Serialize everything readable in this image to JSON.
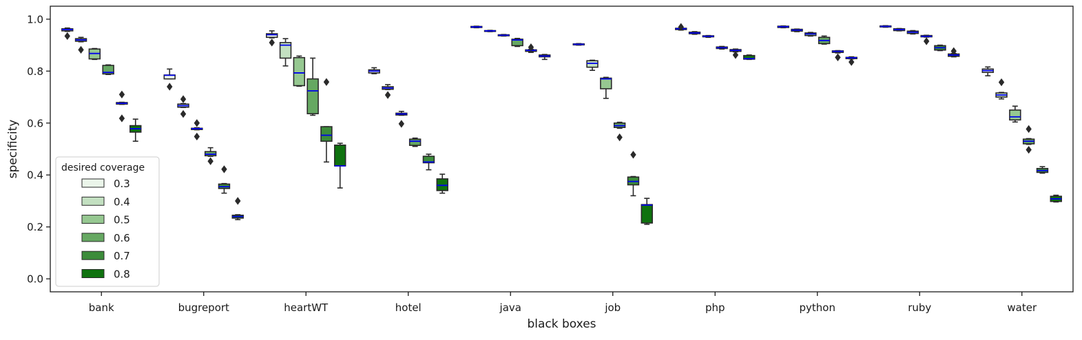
{
  "chart_data": {
    "type": "box",
    "xlabel": "black boxes",
    "ylabel": "specificity",
    "ylim": [
      -0.05,
      1.05
    ],
    "yticks": [
      0.0,
      0.2,
      0.4,
      0.6,
      0.8,
      1.0
    ],
    "ytick_labels": [
      "0.0",
      "0.2",
      "0.4",
      "0.6",
      "0.8",
      "1.0"
    ],
    "grid": false,
    "categories": [
      "bank",
      "bugreport",
      "heartWT",
      "hotel",
      "java",
      "job",
      "php",
      "python",
      "ruby",
      "water"
    ],
    "legend": {
      "title": "desired coverage",
      "placement": "lower-left",
      "entries": [
        {
          "label": "0.3",
          "color": "#ebf5ea"
        },
        {
          "label": "0.4",
          "color": "#c3e0c1"
        },
        {
          "label": "0.5",
          "color": "#96c891"
        },
        {
          "label": "0.6",
          "color": "#66a862"
        },
        {
          "label": "0.7",
          "color": "#3c8c3a"
        },
        {
          "label": "0.8",
          "color": "#0f720f"
        }
      ]
    },
    "colors": {
      "median": "#0000ee",
      "box_edge": "#2a2a2a",
      "flier": "#2a2a2a"
    },
    "boxes": [
      [
        {
          "whislo": 0.953,
          "q1": 0.955,
          "med": 0.96,
          "q3": 0.963,
          "whishi": 0.966,
          "fliers": [
            0.935
          ]
        },
        {
          "whislo": 0.913,
          "q1": 0.915,
          "med": 0.92,
          "q3": 0.925,
          "whishi": 0.93,
          "fliers": [
            0.882
          ]
        },
        {
          "whislo": 0.845,
          "q1": 0.847,
          "med": 0.868,
          "q3": 0.885,
          "whishi": 0.887,
          "fliers": []
        },
        {
          "whislo": 0.787,
          "q1": 0.789,
          "med": 0.795,
          "q3": 0.822,
          "whishi": 0.824,
          "fliers": []
        },
        {
          "whislo": 0.672,
          "q1": 0.673,
          "med": 0.676,
          "q3": 0.679,
          "whishi": 0.68,
          "fliers": [
            0.71,
            0.618
          ]
        },
        {
          "whislo": 0.53,
          "q1": 0.565,
          "med": 0.578,
          "q3": 0.59,
          "whishi": 0.615,
          "fliers": []
        }
      ],
      [
        {
          "whislo": 0.77,
          "q1": 0.77,
          "med": 0.784,
          "q3": 0.785,
          "whishi": 0.808,
          "fliers": [
            0.74
          ]
        },
        {
          "whislo": 0.66,
          "q1": 0.661,
          "med": 0.667,
          "q3": 0.673,
          "whishi": 0.675,
          "fliers": [
            0.692,
            0.635
          ]
        },
        {
          "whislo": 0.574,
          "q1": 0.575,
          "med": 0.578,
          "q3": 0.58,
          "whishi": 0.582,
          "fliers": [
            0.6,
            0.548
          ]
        },
        {
          "whislo": 0.472,
          "q1": 0.474,
          "med": 0.48,
          "q3": 0.49,
          "whishi": 0.505,
          "fliers": [
            0.453
          ]
        },
        {
          "whislo": 0.33,
          "q1": 0.348,
          "med": 0.355,
          "q3": 0.365,
          "whishi": 0.367,
          "fliers": [
            0.422
          ]
        },
        {
          "whislo": 0.228,
          "q1": 0.234,
          "med": 0.24,
          "q3": 0.245,
          "whishi": 0.247,
          "fliers": [
            0.3
          ]
        }
      ],
      [
        {
          "whislo": 0.928,
          "q1": 0.93,
          "med": 0.94,
          "q3": 0.944,
          "whishi": 0.955,
          "fliers": [
            0.91
          ]
        },
        {
          "whislo": 0.82,
          "q1": 0.85,
          "med": 0.9,
          "q3": 0.91,
          "whishi": 0.925,
          "fliers": []
        },
        {
          "whislo": 0.742,
          "q1": 0.744,
          "med": 0.793,
          "q3": 0.852,
          "whishi": 0.858,
          "fliers": []
        },
        {
          "whislo": 0.63,
          "q1": 0.636,
          "med": 0.724,
          "q3": 0.77,
          "whishi": 0.85,
          "fliers": []
        },
        {
          "whislo": 0.45,
          "q1": 0.53,
          "med": 0.553,
          "q3": 0.586,
          "whishi": 0.586,
          "fliers": [
            0.758
          ]
        },
        {
          "whislo": 0.35,
          "q1": 0.435,
          "med": 0.435,
          "q3": 0.515,
          "whishi": 0.522,
          "fliers": []
        }
      ],
      [
        {
          "whislo": 0.79,
          "q1": 0.793,
          "med": 0.8,
          "q3": 0.805,
          "whishi": 0.813,
          "fliers": []
        },
        {
          "whislo": 0.729,
          "q1": 0.73,
          "med": 0.735,
          "q3": 0.74,
          "whishi": 0.748,
          "fliers": [
            0.708
          ]
        },
        {
          "whislo": 0.63,
          "q1": 0.631,
          "med": 0.635,
          "q3": 0.638,
          "whishi": 0.645,
          "fliers": [
            0.597
          ]
        },
        {
          "whislo": 0.51,
          "q1": 0.514,
          "med": 0.53,
          "q3": 0.538,
          "whishi": 0.542,
          "fliers": []
        },
        {
          "whislo": 0.42,
          "q1": 0.447,
          "med": 0.45,
          "q3": 0.472,
          "whishi": 0.48,
          "fliers": []
        },
        {
          "whislo": 0.33,
          "q1": 0.34,
          "med": 0.36,
          "q3": 0.385,
          "whishi": 0.403,
          "fliers": []
        }
      ],
      [
        {
          "whislo": 0.967,
          "q1": 0.968,
          "med": 0.97,
          "q3": 0.972,
          "whishi": 0.973,
          "fliers": []
        },
        {
          "whislo": 0.952,
          "q1": 0.953,
          "med": 0.955,
          "q3": 0.956,
          "whishi": 0.957,
          "fliers": []
        },
        {
          "whislo": 0.935,
          "q1": 0.936,
          "med": 0.938,
          "q3": 0.94,
          "whishi": 0.941,
          "fliers": []
        },
        {
          "whislo": 0.895,
          "q1": 0.898,
          "med": 0.92,
          "q3": 0.923,
          "whishi": 0.926,
          "fliers": []
        },
        {
          "whislo": 0.872,
          "q1": 0.876,
          "med": 0.88,
          "q3": 0.882,
          "whishi": 0.884,
          "fliers": [
            0.892
          ]
        },
        {
          "whislo": 0.845,
          "q1": 0.855,
          "med": 0.858,
          "q3": 0.862,
          "whishi": 0.864,
          "fliers": []
        }
      ],
      [
        {
          "whislo": 0.9,
          "q1": 0.901,
          "med": 0.903,
          "q3": 0.905,
          "whishi": 0.906,
          "fliers": []
        },
        {
          "whislo": 0.803,
          "q1": 0.815,
          "med": 0.83,
          "q3": 0.84,
          "whishi": 0.842,
          "fliers": []
        },
        {
          "whislo": 0.695,
          "q1": 0.732,
          "med": 0.77,
          "q3": 0.773,
          "whishi": 0.776,
          "fliers": []
        },
        {
          "whislo": 0.58,
          "q1": 0.583,
          "med": 0.59,
          "q3": 0.6,
          "whishi": 0.603,
          "fliers": [
            0.545
          ]
        },
        {
          "whislo": 0.32,
          "q1": 0.362,
          "med": 0.375,
          "q3": 0.392,
          "whishi": 0.394,
          "fliers": [
            0.478
          ]
        },
        {
          "whislo": 0.21,
          "q1": 0.215,
          "med": 0.284,
          "q3": 0.286,
          "whishi": 0.31,
          "fliers": []
        }
      ],
      [
        {
          "whislo": 0.958,
          "q1": 0.96,
          "med": 0.963,
          "q3": 0.965,
          "whishi": 0.966,
          "fliers": [
            0.97
          ]
        },
        {
          "whislo": 0.942,
          "q1": 0.944,
          "med": 0.947,
          "q3": 0.95,
          "whishi": 0.952,
          "fliers": []
        },
        {
          "whislo": 0.93,
          "q1": 0.932,
          "med": 0.934,
          "q3": 0.936,
          "whishi": 0.937,
          "fliers": []
        },
        {
          "whislo": 0.885,
          "q1": 0.887,
          "med": 0.89,
          "q3": 0.893,
          "whishi": 0.895,
          "fliers": []
        },
        {
          "whislo": 0.874,
          "q1": 0.876,
          "med": 0.88,
          "q3": 0.883,
          "whishi": 0.885,
          "fliers": [
            0.862
          ]
        },
        {
          "whislo": 0.845,
          "q1": 0.846,
          "med": 0.848,
          "q3": 0.86,
          "whishi": 0.862,
          "fliers": []
        }
      ],
      [
        {
          "whislo": 0.967,
          "q1": 0.968,
          "med": 0.971,
          "q3": 0.973,
          "whishi": 0.974,
          "fliers": []
        },
        {
          "whislo": 0.952,
          "q1": 0.954,
          "med": 0.958,
          "q3": 0.961,
          "whishi": 0.962,
          "fliers": []
        },
        {
          "whislo": 0.935,
          "q1": 0.937,
          "med": 0.943,
          "q3": 0.947,
          "whishi": 0.949,
          "fliers": []
        },
        {
          "whislo": 0.904,
          "q1": 0.906,
          "med": 0.918,
          "q3": 0.93,
          "whishi": 0.935,
          "fliers": []
        },
        {
          "whislo": 0.87,
          "q1": 0.872,
          "med": 0.876,
          "q3": 0.878,
          "whishi": 0.879,
          "fliers": [
            0.853
          ]
        },
        {
          "whislo": 0.847,
          "q1": 0.848,
          "med": 0.851,
          "q3": 0.853,
          "whishi": 0.855,
          "fliers": [
            0.835
          ]
        }
      ],
      [
        {
          "whislo": 0.969,
          "q1": 0.97,
          "med": 0.972,
          "q3": 0.974,
          "whishi": 0.975,
          "fliers": []
        },
        {
          "whislo": 0.955,
          "q1": 0.956,
          "med": 0.96,
          "q3": 0.963,
          "whishi": 0.964,
          "fliers": []
        },
        {
          "whislo": 0.943,
          "q1": 0.945,
          "med": 0.95,
          "q3": 0.954,
          "whishi": 0.956,
          "fliers": []
        },
        {
          "whislo": 0.931,
          "q1": 0.932,
          "med": 0.934,
          "q3": 0.937,
          "whishi": 0.938,
          "fliers": [
            0.915
          ]
        },
        {
          "whislo": 0.879,
          "q1": 0.881,
          "med": 0.89,
          "q3": 0.898,
          "whishi": 0.9,
          "fliers": []
        },
        {
          "whislo": 0.855,
          "q1": 0.857,
          "med": 0.862,
          "q3": 0.866,
          "whishi": 0.868,
          "fliers": [
            0.877
          ]
        }
      ],
      [
        {
          "whislo": 0.782,
          "q1": 0.795,
          "med": 0.802,
          "q3": 0.808,
          "whishi": 0.816,
          "fliers": []
        },
        {
          "whislo": 0.693,
          "q1": 0.7,
          "med": 0.708,
          "q3": 0.716,
          "whishi": 0.718,
          "fliers": [
            0.757
          ]
        },
        {
          "whislo": 0.604,
          "q1": 0.612,
          "med": 0.624,
          "q3": 0.65,
          "whishi": 0.665,
          "fliers": []
        },
        {
          "whislo": 0.518,
          "q1": 0.52,
          "med": 0.53,
          "q3": 0.538,
          "whishi": 0.54,
          "fliers": [
            0.577,
            0.497
          ]
        },
        {
          "whislo": 0.407,
          "q1": 0.41,
          "med": 0.417,
          "q3": 0.425,
          "whishi": 0.432,
          "fliers": []
        },
        {
          "whislo": 0.296,
          "q1": 0.298,
          "med": 0.308,
          "q3": 0.318,
          "whishi": 0.322,
          "fliers": []
        }
      ]
    ]
  }
}
